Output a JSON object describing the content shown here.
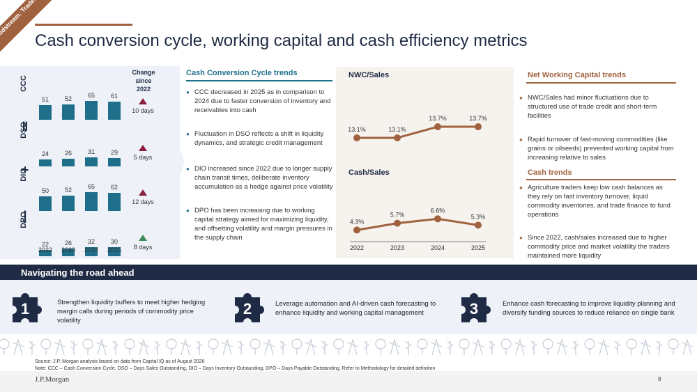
{
  "corner_tag": "Midstream: Traders",
  "title": "Cash conversion cycle, working capital and cash efficiency metrics",
  "left_chart": {
    "change_header": "Change since 2022",
    "years": [
      "2022",
      "2023",
      "2024",
      "2025"
    ],
    "operators": [
      "=",
      "+",
      "-"
    ],
    "metrics": [
      {
        "label": "CCC",
        "values": [
          51,
          52,
          65,
          61
        ],
        "value_labels": [
          "51",
          "52",
          "65",
          "61"
        ],
        "change": "10 days",
        "direction": "up",
        "color": "#8b1e3f"
      },
      {
        "label": "DSO",
        "values": [
          24,
          26,
          31,
          29
        ],
        "value_labels": [
          "24",
          "26",
          "31",
          "29"
        ],
        "change": "5 days",
        "direction": "up",
        "color": "#8b1e3f"
      },
      {
        "label": "DIO",
        "values": [
          50,
          52,
          65,
          62
        ],
        "value_labels": [
          "50",
          "52",
          "65",
          "62"
        ],
        "change": "12 days",
        "direction": "up",
        "color": "#8b1e3f"
      },
      {
        "label": "DPO",
        "values": [
          22,
          26,
          32,
          30
        ],
        "value_labels": [
          "22",
          "26",
          "32",
          "30"
        ],
        "change": "8 days",
        "direction": "up",
        "color": "#3d8b5a"
      }
    ]
  },
  "ccc_trends": {
    "heading": "Cash Conversion Cycle trends",
    "bullets": [
      "CCC decreased in 2025 as in comparison to 2024 due to faster conversion of inventory and receivables into cash",
      "Fluctuation in DSO reflects a shift in liquidity dynamics, and strategic credit management",
      "DIO increased since 2022 due to longer supply chain transit times, deliberate inventory accumulation as a hedge against price volatility",
      "DPO has been increasing due to working capital strategy aimed for maximizing liquidity, and offsetting volatility and margin pressures in the supply chain"
    ]
  },
  "chart_data": [
    {
      "type": "line",
      "title": "NWC/Sales",
      "x": [
        "2022",
        "2023",
        "2024",
        "2025"
      ],
      "values": [
        13.1,
        13.1,
        13.7,
        13.7
      ],
      "value_labels": [
        "13.1%",
        "13.1%",
        "13.7%",
        "13.7%"
      ],
      "color": "#a0623e"
    },
    {
      "type": "line",
      "title": "Cash/Sales",
      "x": [
        "2022",
        "2023",
        "2024",
        "2025"
      ],
      "values": [
        4.3,
        5.7,
        6.6,
        5.3
      ],
      "value_labels": [
        "4.3%",
        "5.7%",
        "6.6%",
        "5.3%"
      ],
      "color": "#a0623e"
    }
  ],
  "nwc_trends": {
    "heading": "Net Working Capital trends",
    "bullets": [
      "NWC/Sales had minor fluctuations due to structured use of trade credit and short-term facilities",
      "Rapid turnover of fast-moving commodities (like grains or oilseeds) prevented working capital from increasing relative to sales"
    ]
  },
  "cash_trends": {
    "heading": "Cash trends",
    "bullets": [
      "Agriculture traders keep low cash balances as they rely on fast inventory turnover, liquid commodity inventories, and trade finance to fund operations",
      "Since 2022, cash/sales increased due to higher commodity price and market volatility the traders maintained more liquidity"
    ]
  },
  "road_ahead": {
    "heading": "Navigating the road ahead",
    "steps": [
      {
        "num": "1",
        "text": "Strengthen liquidity buffers to meet higher hedging margin calls during periods of commodity price volatility"
      },
      {
        "num": "2",
        "text": "Leverage automation and AI-driven cash forecasting to enhance liquidity and working capital management"
      },
      {
        "num": "3",
        "text": "Enhance cash forecasting to improve liquidity planning and diversify funding sources to reduce reliance on single bank"
      }
    ]
  },
  "footer": {
    "source": "Source: J.P. Morgan analysis based on data from Capital IQ as of August 2026",
    "note": "Note: CCC – Cash Conversion Cycle, DSO – Days Sales Outstanding, DIO – Days Inventory Outstanding, DPO – Days Payable Outstanding. Refer to Methodology for detailed definition",
    "logo": "J.P.Morgan",
    "page": "8"
  },
  "colors": {
    "navy": "#1f2a44",
    "teal": "#1f6f8b",
    "brown": "#a0623e"
  }
}
